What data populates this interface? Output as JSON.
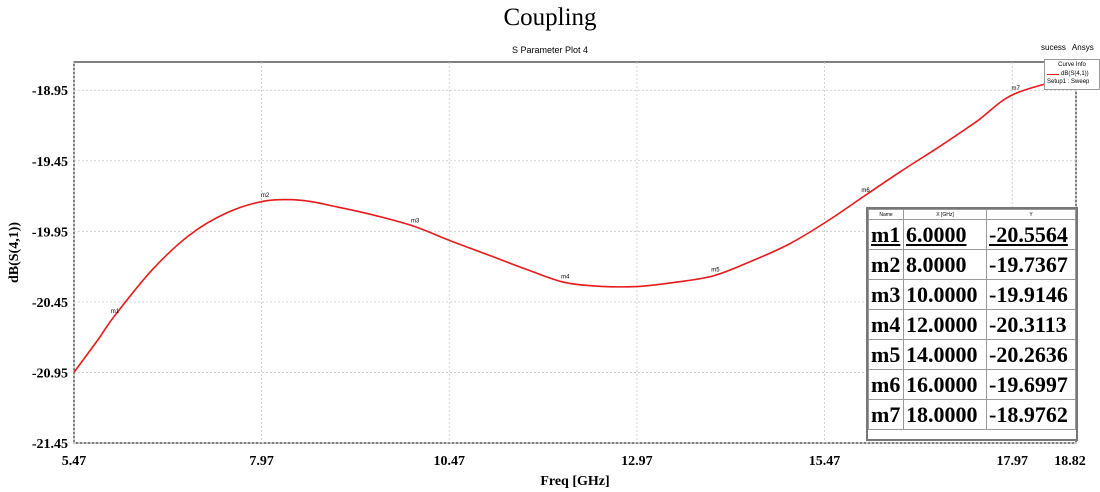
{
  "header": {
    "banner": "Coupling",
    "plot_title": "S Parameter Plot 4",
    "brand_status": "sucess",
    "brand_name": "Ansys"
  },
  "legend": {
    "title": "Curve Info",
    "series_label": "dB(S(4,1))",
    "setup_label": "Setup1 : Sweep"
  },
  "marker_table": {
    "headers": [
      "Name",
      "X [GHz]",
      "Y"
    ],
    "rows": [
      [
        "m1",
        "6.0000",
        "-20.5564"
      ],
      [
        "m2",
        "8.0000",
        "-19.7367"
      ],
      [
        "m3",
        "10.0000",
        "-19.9146"
      ],
      [
        "m4",
        "12.0000",
        "-20.3113"
      ],
      [
        "m5",
        "14.0000",
        "-20.2636"
      ],
      [
        "m6",
        "16.0000",
        "-19.6997"
      ],
      [
        "m7",
        "18.0000",
        "-18.9762"
      ]
    ]
  },
  "chart_data": {
    "type": "line",
    "title": "S Parameter Plot 4",
    "xlabel": "Freq [GHz]",
    "ylabel": "dB(S(4,1))",
    "xlim": [
      5.47,
      18.82
    ],
    "ylim": [
      -21.45,
      -18.75
    ],
    "x_ticks": [
      "5.47",
      "7.97",
      "10.47",
      "12.97",
      "15.47",
      "17.97",
      "18.82"
    ],
    "y_ticks": [
      "-18.95",
      "-19.45",
      "-19.95",
      "-20.45",
      "-20.95",
      "-21.45"
    ],
    "grid": true,
    "legend_position": "top-right",
    "series": [
      {
        "name": "dB(S(4,1))",
        "color": "#e8191a",
        "x": [
          5.47,
          5.8,
          6.0,
          6.5,
          7.0,
          7.5,
          8.0,
          8.5,
          9.0,
          9.5,
          10.0,
          10.5,
          11.0,
          11.5,
          12.0,
          12.5,
          13.0,
          13.5,
          14.0,
          14.5,
          15.0,
          15.5,
          16.0,
          16.5,
          17.0,
          17.5,
          18.0,
          18.82
        ],
        "y": [
          -20.95,
          -20.71,
          -20.5564,
          -20.23,
          -19.98,
          -19.82,
          -19.7367,
          -19.73,
          -19.78,
          -19.84,
          -19.9146,
          -20.02,
          -20.12,
          -20.22,
          -20.3113,
          -20.34,
          -20.34,
          -20.31,
          -20.2636,
          -20.16,
          -20.04,
          -19.88,
          -19.6997,
          -19.52,
          -19.35,
          -19.17,
          -18.9762,
          -18.85
        ]
      }
    ],
    "markers": [
      {
        "name": "m1",
        "x": 6.0,
        "y": -20.5564
      },
      {
        "name": "m2",
        "x": 8.0,
        "y": -19.7367
      },
      {
        "name": "m3",
        "x": 10.0,
        "y": -19.9146
      },
      {
        "name": "m4",
        "x": 12.0,
        "y": -20.3113
      },
      {
        "name": "m5",
        "x": 14.0,
        "y": -20.2636
      },
      {
        "name": "m6",
        "x": 16.0,
        "y": -19.6997
      },
      {
        "name": "m7",
        "x": 18.0,
        "y": -18.9762
      }
    ]
  }
}
